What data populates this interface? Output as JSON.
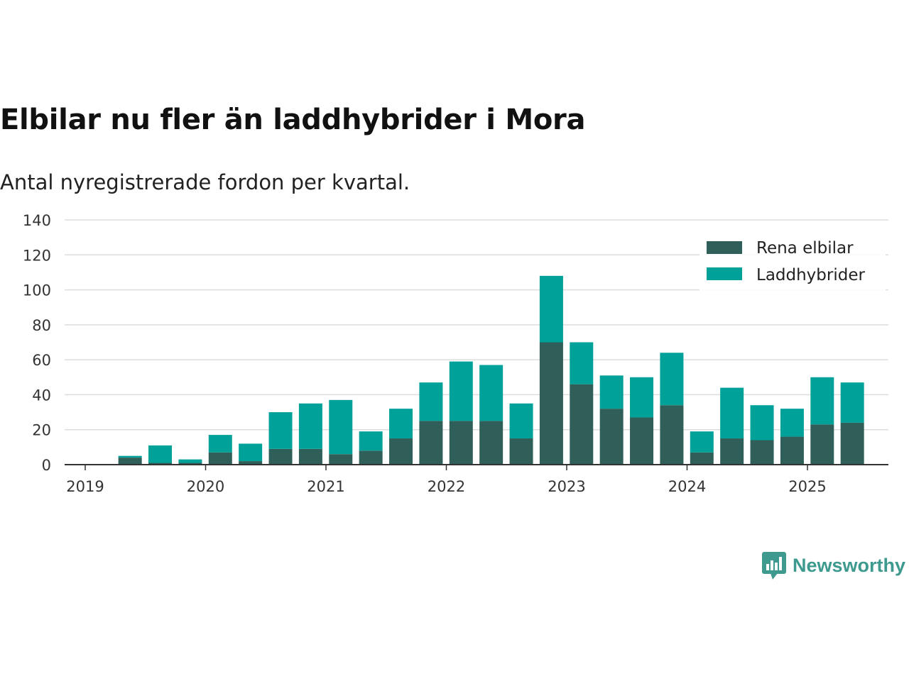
{
  "title": "Elbilar nu fler än laddhybrider i Mora",
  "subtitle": "Antal nyregistrerade fordon per kvartal.",
  "brand": {
    "name": "Newsworthy",
    "color": "#3e9a8e"
  },
  "chart_data": {
    "type": "bar",
    "stacked": true,
    "x_labels": [
      "2019",
      "2020",
      "2021",
      "2022",
      "2023",
      "2024",
      "2025"
    ],
    "quarters": [
      "2019 Q2",
      "2019 Q3",
      "2019 Q4",
      "2020 Q1",
      "2020 Q2",
      "2020 Q3",
      "2020 Q4",
      "2021 Q1",
      "2021 Q2",
      "2021 Q3",
      "2021 Q4",
      "2022 Q1",
      "2022 Q2",
      "2022 Q3",
      "2022 Q4",
      "2023 Q1",
      "2023 Q2",
      "2023 Q3",
      "2023 Q4",
      "2024 Q1",
      "2024 Q2",
      "2024 Q3",
      "2024 Q4",
      "2025 Q1",
      "2025 Q2"
    ],
    "ylim": [
      0,
      140
    ],
    "yticks": [
      0,
      20,
      40,
      60,
      80,
      100,
      120,
      140
    ],
    "grid": true,
    "legend_position": "top-right",
    "series": [
      {
        "name": "Rena elbilar",
        "color": "#2f5f58",
        "values": [
          4,
          1,
          1,
          7,
          2,
          9,
          9,
          6,
          8,
          15,
          25,
          25,
          25,
          15,
          70,
          46,
          32,
          27,
          34,
          7,
          15,
          14,
          16,
          23,
          24
        ]
      },
      {
        "name": "Laddhybrider",
        "color": "#00a199",
        "values": [
          1,
          10,
          2,
          10,
          10,
          21,
          26,
          31,
          11,
          17,
          22,
          34,
          32,
          20,
          38,
          24,
          19,
          23,
          30,
          12,
          29,
          20,
          16,
          27,
          23
        ]
      }
    ]
  }
}
